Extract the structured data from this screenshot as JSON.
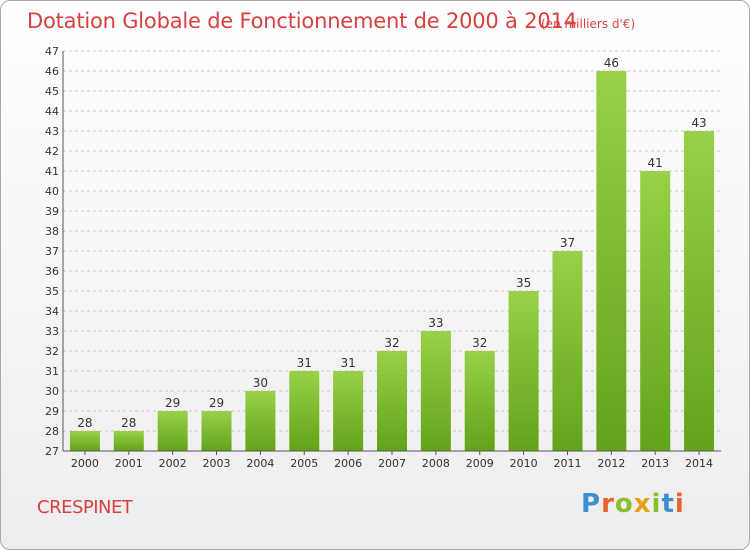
{
  "chart_data": {
    "type": "bar",
    "title": "Dotation Globale de Fonctionnement de 2000 à 2014",
    "subtitle": "(en milliers d'€)",
    "categories": [
      "2000",
      "2001",
      "2002",
      "2003",
      "2004",
      "2005",
      "2006",
      "2007",
      "2008",
      "2009",
      "2010",
      "2011",
      "2012",
      "2013",
      "2014"
    ],
    "values": [
      28,
      28,
      29,
      29,
      30,
      31,
      31,
      32,
      33,
      32,
      35,
      37,
      46,
      41,
      43
    ],
    "ylim": [
      27,
      47
    ],
    "yticks": [
      27,
      28,
      29,
      30,
      31,
      32,
      33,
      34,
      35,
      36,
      37,
      38,
      39,
      40,
      41,
      42,
      43,
      44,
      45,
      46,
      47
    ],
    "grid": true,
    "bar_color": "#7dbf2b"
  },
  "footer": {
    "commune": "CRESPINET",
    "logo_letters": [
      "P",
      "r",
      "o",
      "x",
      "i",
      "t",
      "i"
    ],
    "logo_colors": [
      "#3d8fd1",
      "#e8622a",
      "#8bbf2a",
      "#e6a117",
      "#8bbf2a",
      "#3d8fd1",
      "#e8622a"
    ]
  }
}
